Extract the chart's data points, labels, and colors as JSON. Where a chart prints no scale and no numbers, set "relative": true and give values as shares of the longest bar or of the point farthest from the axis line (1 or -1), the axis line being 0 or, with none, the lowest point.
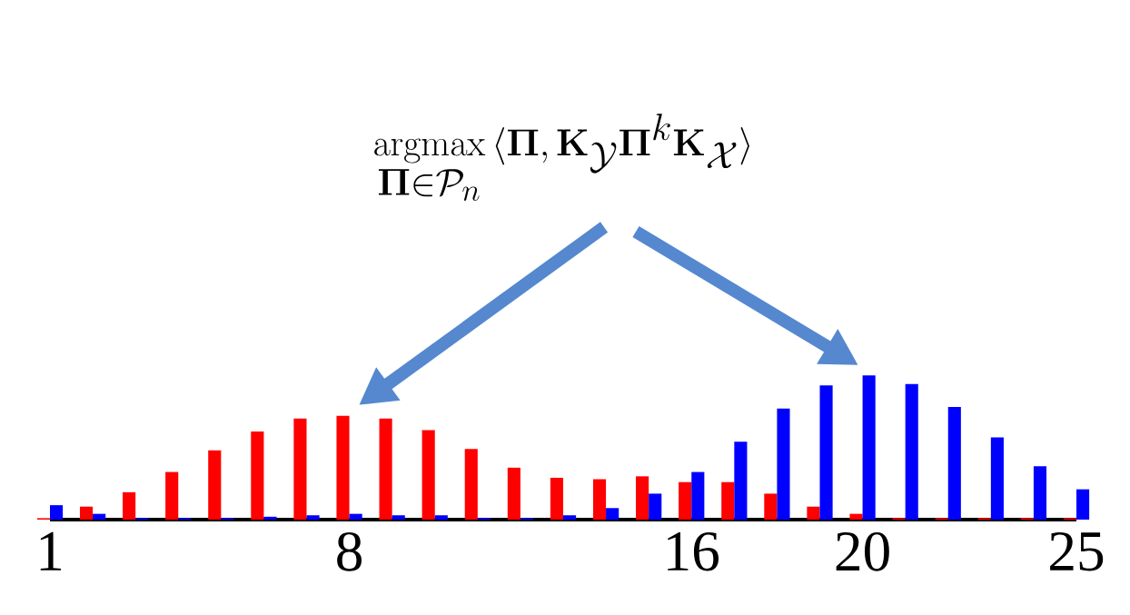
{
  "chart_data": {
    "type": "bar",
    "title": "\\operatorname*{argmax}_{\\mathbf{\\Pi}\\in\\mathcal{P}_n}\\,\\langle\\mathbf{\\Pi},\\mathbf{K}_{\\mathcal{Y}}\\mathbf{\\Pi}^k\\mathbf{K}_{\\mathcal{X}}\\rangle",
    "relative": true,
    "categories": [
      "1",
      null,
      null,
      null,
      null,
      null,
      null,
      "8",
      null,
      null,
      null,
      null,
      null,
      null,
      null,
      "16",
      null,
      null,
      null,
      "20",
      null,
      null,
      null,
      null,
      "25"
    ],
    "series": [
      {
        "color": "#ff0000",
        "values": [
          0.01,
          0.09,
          0.19,
          0.33,
          0.48,
          0.61,
          0.7,
          0.72,
          0.7,
          0.62,
          0.49,
          0.36,
          0.29,
          0.28,
          0.3,
          0.26,
          0.26,
          0.18,
          0.09,
          0.04,
          0.01,
          0.01,
          0.01,
          0.01,
          0.01
        ]
      },
      {
        "color": "#0000ff",
        "values": [
          0.1,
          0.04,
          0.01,
          0.01,
          0.01,
          0.02,
          0.03,
          0.04,
          0.03,
          0.03,
          0.01,
          0.01,
          0.03,
          0.08,
          0.18,
          0.33,
          0.54,
          0.77,
          0.93,
          1.0,
          0.94,
          0.78,
          0.57,
          0.37,
          0.21
        ]
      }
    ]
  }
}
